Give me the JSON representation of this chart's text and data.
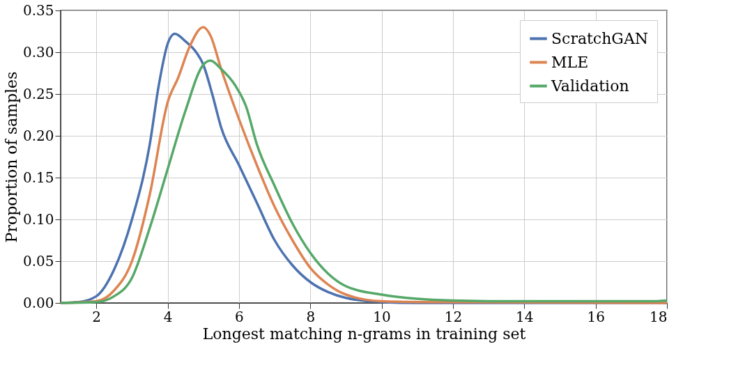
{
  "chart_data": {
    "type": "line",
    "xlabel": "Longest matching n-grams in training set",
    "ylabel": "Proportion of samples",
    "xlim": [
      1,
      18
    ],
    "xticks": [
      2,
      4,
      6,
      8,
      10,
      12,
      14,
      16,
      18
    ],
    "ylim": [
      0,
      0.35
    ],
    "yticks": [
      {
        "value": 0,
        "label": "0.00"
      },
      0.05,
      {
        "value": 0.1,
        "label": "0.10"
      },
      0.15,
      {
        "value": 0.2,
        "label": "0.20"
      },
      0.25,
      {
        "value": 0.3,
        "label": "0.30"
      },
      0.35
    ],
    "grid": true,
    "legend": "top right",
    "line_style": "solid",
    "marker": "none",
    "series": [
      {
        "name": "ScratchGAN",
        "color": "#4c72b0",
        "x": [
          1,
          1.5,
          2,
          2.5,
          3,
          3.5,
          3.75,
          4,
          4.2,
          4.5,
          4.8,
          5,
          5.25,
          5.5,
          6,
          6.5,
          7,
          7.5,
          8,
          8.5,
          9,
          10,
          11,
          18
        ],
        "values": [
          0,
          0.001,
          0.008,
          0.04,
          0.1,
          0.19,
          0.26,
          0.31,
          0.322,
          0.313,
          0.3,
          0.285,
          0.25,
          0.21,
          0.165,
          0.12,
          0.075,
          0.045,
          0.025,
          0.013,
          0.006,
          0.001,
          0,
          0
        ]
      },
      {
        "name": "MLE",
        "color": "#dd8452",
        "x": [
          1,
          2,
          2.5,
          3,
          3.5,
          4,
          4.3,
          4.6,
          5,
          5.2,
          5.5,
          6,
          6.5,
          7,
          7.5,
          8,
          8.5,
          9,
          10,
          11,
          18
        ],
        "values": [
          0,
          0.002,
          0.015,
          0.05,
          0.13,
          0.24,
          0.27,
          0.305,
          0.33,
          0.32,
          0.28,
          0.22,
          0.165,
          0.115,
          0.075,
          0.042,
          0.022,
          0.01,
          0.002,
          0.001,
          0
        ]
      },
      {
        "name": "Validation",
        "color": "#55a868",
        "x": [
          1,
          2,
          2.5,
          3,
          3.5,
          4,
          4.5,
          5,
          5.2,
          5.5,
          5.9,
          6.2,
          6.5,
          7,
          7.5,
          8,
          8.5,
          9,
          10,
          11,
          12,
          14,
          16,
          17.5,
          18
        ],
        "values": [
          0,
          0.001,
          0.008,
          0.03,
          0.09,
          0.16,
          0.23,
          0.285,
          0.29,
          0.28,
          0.26,
          0.235,
          0.19,
          0.14,
          0.095,
          0.06,
          0.035,
          0.02,
          0.01,
          0.005,
          0.003,
          0.002,
          0.002,
          0.002,
          0.003
        ]
      }
    ]
  }
}
